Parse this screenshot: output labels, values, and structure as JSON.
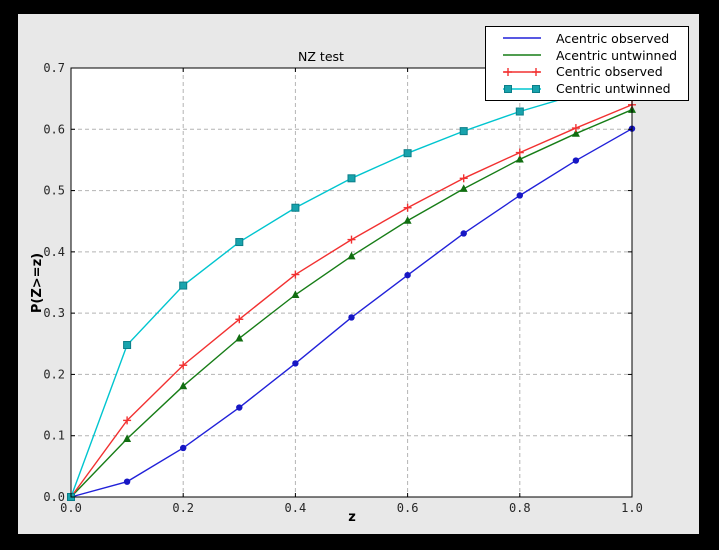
{
  "palette": {
    "window_border": "#000000",
    "figure_bg": "#e8e8e8",
    "axes_bg": "#ffffff",
    "spine": "#000000",
    "grid": "#b4b4b4",
    "tick_label": "#262626"
  },
  "chart_data": {
    "type": "line",
    "title": "NZ test",
    "xlabel": "z",
    "ylabel": "P(Z>=z)",
    "xlim": [
      0.0,
      1.0
    ],
    "ylim": [
      0.0,
      0.7
    ],
    "grid": "on",
    "legend_position": "upper right",
    "x_ticks": [
      {
        "value": 0.0,
        "label": "0.0"
      },
      {
        "value": 0.2,
        "label": "0.2"
      },
      {
        "value": 0.4,
        "label": "0.4"
      },
      {
        "value": 0.6,
        "label": "0.6"
      },
      {
        "value": 0.8,
        "label": "0.8"
      },
      {
        "value": 1.0,
        "label": "1.0"
      }
    ],
    "y_ticks": [
      {
        "value": 0.0,
        "label": "0.0"
      },
      {
        "value": 0.1,
        "label": "0.1"
      },
      {
        "value": 0.2,
        "label": "0.2"
      },
      {
        "value": 0.3,
        "label": "0.3"
      },
      {
        "value": 0.4,
        "label": "0.4"
      },
      {
        "value": 0.5,
        "label": "0.5"
      },
      {
        "value": 0.6,
        "label": "0.6"
      },
      {
        "value": 0.7,
        "label": "0.7"
      }
    ],
    "x": [
      0.0,
      0.1,
      0.2,
      0.3,
      0.4,
      0.5,
      0.6,
      0.7,
      0.8,
      0.9,
      1.0
    ],
    "series": [
      {
        "name": "Acentric observed",
        "color": "#2121d9",
        "marker_fill": "#1717c4",
        "marker": "circle",
        "legend_marker": "none",
        "values": [
          0.0,
          0.025,
          0.08,
          0.146,
          0.218,
          0.293,
          0.362,
          0.43,
          0.492,
          0.549,
          0.601
        ]
      },
      {
        "name": "Acentric untwinned",
        "color": "#177d17",
        "marker_fill": "#116e11",
        "marker": "triangle",
        "legend_marker": "none",
        "values": [
          0.0,
          0.095,
          0.181,
          0.259,
          0.33,
          0.393,
          0.451,
          0.503,
          0.551,
          0.593,
          0.632
        ]
      },
      {
        "name": "Centric observed",
        "color": "#f23131",
        "marker_fill": "#f23131",
        "marker": "plus",
        "legend_marker": "plus",
        "values": [
          0.0,
          0.125,
          0.215,
          0.29,
          0.363,
          0.42,
          0.472,
          0.52,
          0.562,
          0.602,
          0.64
        ]
      },
      {
        "name": "Centric untwinned",
        "color": "#00c5cf",
        "marker_fill": "#18a3ad",
        "marker": "square",
        "legend_marker": "square",
        "values": [
          0.0,
          0.248,
          0.345,
          0.416,
          0.472,
          0.52,
          0.561,
          0.597,
          0.629,
          0.656,
          0.683
        ]
      }
    ]
  }
}
